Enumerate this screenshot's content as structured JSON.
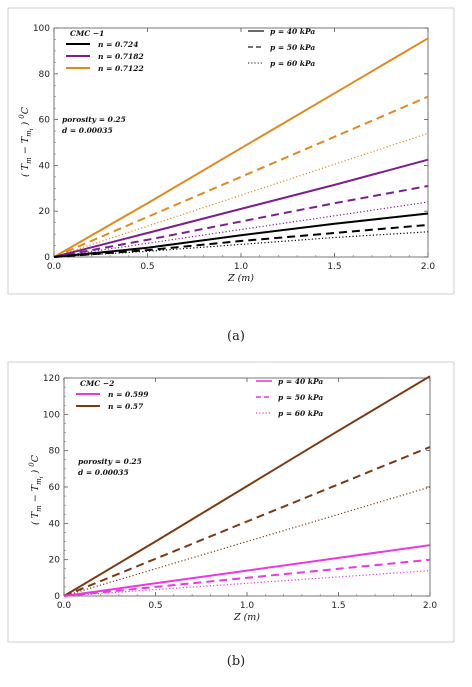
{
  "chart_data": [
    {
      "type": "line",
      "caption": "(a)",
      "xlabel": "Z (m)",
      "ylabel": "(T_m − T_mi) °C",
      "ylabel_parts": {
        "open": "(",
        "t": "T",
        "m": "m",
        "minus": "−",
        "t2": "T",
        "mi": "m",
        "i": "i",
        "close": ")",
        "deg": "0",
        "unit": "C"
      },
      "xlim": [
        0,
        2.0
      ],
      "ylim": [
        0,
        100
      ],
      "xticks": [
        "0.0",
        "0.5",
        "1.0",
        "1.5",
        "2.0"
      ],
      "yticks": [
        "0",
        "20",
        "40",
        "60",
        "80",
        "100"
      ],
      "legend_fluid_title": "CMC −1",
      "legend_fluid": [
        {
          "label": "n = 0.724",
          "color": "#000000"
        },
        {
          "label": "n = 0.7182",
          "color": "#7b1f8e"
        },
        {
          "label": "n = 0.7122",
          "color": "#e08a1e"
        }
      ],
      "legend_pressure": [
        {
          "label": "p = 40 kPa",
          "style": "solid"
        },
        {
          "label": "p = 50 kPa",
          "style": "dashed"
        },
        {
          "label": "p = 60 kPa",
          "style": "dotted"
        }
      ],
      "notes": [
        "porosity = 0.25",
        "d = 0.00035"
      ],
      "series": [
        {
          "color": "#e08a1e",
          "style": "solid",
          "values": [
            [
              0,
              0
            ],
            [
              0.5,
              23.5
            ],
            [
              1.0,
              47.5
            ],
            [
              1.5,
              71.5
            ],
            [
              2.0,
              95.5
            ]
          ]
        },
        {
          "color": "#e08a1e",
          "style": "dashed",
          "values": [
            [
              0,
              0
            ],
            [
              0.5,
              17.5
            ],
            [
              1.0,
              35
            ],
            [
              1.5,
              52.5
            ],
            [
              2.0,
              70
            ]
          ]
        },
        {
          "color": "#e08a1e",
          "style": "dotted",
          "values": [
            [
              0,
              0
            ],
            [
              0.5,
              13.5
            ],
            [
              1.0,
              27
            ],
            [
              1.5,
              40.5
            ],
            [
              2.0,
              54
            ]
          ]
        },
        {
          "color": "#7b1f8e",
          "style": "solid",
          "values": [
            [
              0,
              0
            ],
            [
              0.5,
              10.5
            ],
            [
              1.0,
              21
            ],
            [
              1.5,
              31.5
            ],
            [
              2.0,
              42.5
            ]
          ]
        },
        {
          "color": "#7b1f8e",
          "style": "dashed",
          "values": [
            [
              0,
              0
            ],
            [
              0.5,
              7.5
            ],
            [
              1.0,
              15.5
            ],
            [
              1.5,
              23.5
            ],
            [
              2.0,
              31
            ]
          ]
        },
        {
          "color": "#7b1f8e",
          "style": "dotted",
          "values": [
            [
              0,
              0
            ],
            [
              0.5,
              6
            ],
            [
              1.0,
              12
            ],
            [
              1.5,
              18
            ],
            [
              2.0,
              24
            ]
          ]
        },
        {
          "color": "#000000",
          "style": "solid",
          "values": [
            [
              0,
              0
            ],
            [
              0.5,
              4
            ],
            [
              1.0,
              9.5
            ],
            [
              1.5,
              14.5
            ],
            [
              2.0,
              19
            ]
          ]
        },
        {
          "color": "#000000",
          "style": "dashed",
          "values": [
            [
              0,
              0
            ],
            [
              0.5,
              3
            ],
            [
              1.0,
              7
            ],
            [
              1.5,
              10.5
            ],
            [
              2.0,
              14
            ]
          ]
        },
        {
          "color": "#000000",
          "style": "dotted",
          "values": [
            [
              0,
              0
            ],
            [
              0.5,
              2.5
            ],
            [
              1.0,
              5.5
            ],
            [
              1.5,
              8.5
            ],
            [
              2.0,
              11
            ]
          ]
        }
      ]
    },
    {
      "type": "line",
      "caption": "(b)",
      "xlabel": "Z (m)",
      "ylabel": "(T_m − T_mi) °C",
      "ylabel_parts": {
        "open": "(",
        "t": "T",
        "m": "m",
        "minus": "−",
        "t2": "T",
        "mi": "m",
        "i": "i",
        "close": ")",
        "deg": "0",
        "unit": "C"
      },
      "xlim": [
        0,
        2.0
      ],
      "ylim": [
        0,
        120
      ],
      "xticks": [
        "0.0",
        "0.5",
        "1.0",
        "1.5",
        "2.0"
      ],
      "yticks": [
        "0",
        "20",
        "40",
        "60",
        "80",
        "100",
        "120"
      ],
      "legend_fluid_title": "CMC −2",
      "legend_fluid": [
        {
          "label": "n = 0.599",
          "color": "#e83ae0"
        },
        {
          "label": "n = 0.57",
          "color": "#7a3a12"
        }
      ],
      "legend_pressure": [
        {
          "label": "p = 40 kPa",
          "style": "solid"
        },
        {
          "label": "p = 50 kPa",
          "style": "dashed"
        },
        {
          "label": "p = 60 kPa",
          "style": "dotted"
        }
      ],
      "notes": [
        "porosity = 0.25",
        "d = 0.00035"
      ],
      "series": [
        {
          "color": "#7a3a12",
          "style": "solid",
          "values": [
            [
              0,
              0
            ],
            [
              0.5,
              30
            ],
            [
              1.0,
              60.5
            ],
            [
              1.5,
              91
            ],
            [
              2.0,
              121
            ]
          ]
        },
        {
          "color": "#7a3a12",
          "style": "dashed",
          "values": [
            [
              0,
              0
            ],
            [
              0.5,
              20.5
            ],
            [
              1.0,
              41
            ],
            [
              1.5,
              61.5
            ],
            [
              2.0,
              82
            ]
          ]
        },
        {
          "color": "#7a3a12",
          "style": "dotted",
          "values": [
            [
              0,
              0
            ],
            [
              0.5,
              15
            ],
            [
              1.0,
              30
            ],
            [
              1.5,
              45
            ],
            [
              2.0,
              60
            ]
          ]
        },
        {
          "color": "#e83ae0",
          "style": "solid",
          "values": [
            [
              0,
              0
            ],
            [
              0.5,
              7
            ],
            [
              1.0,
              14
            ],
            [
              1.5,
              21
            ],
            [
              2.0,
              28
            ]
          ]
        },
        {
          "color": "#e83ae0",
          "style": "dashed",
          "values": [
            [
              0,
              0
            ],
            [
              0.5,
              5
            ],
            [
              1.0,
              10
            ],
            [
              1.5,
              15
            ],
            [
              2.0,
              20
            ]
          ]
        },
        {
          "color": "#e83ae0",
          "style": "dotted",
          "values": [
            [
              0,
              0
            ],
            [
              0.5,
              3.5
            ],
            [
              1.0,
              7
            ],
            [
              1.5,
              10.5
            ],
            [
              2.0,
              14
            ]
          ]
        }
      ]
    }
  ]
}
